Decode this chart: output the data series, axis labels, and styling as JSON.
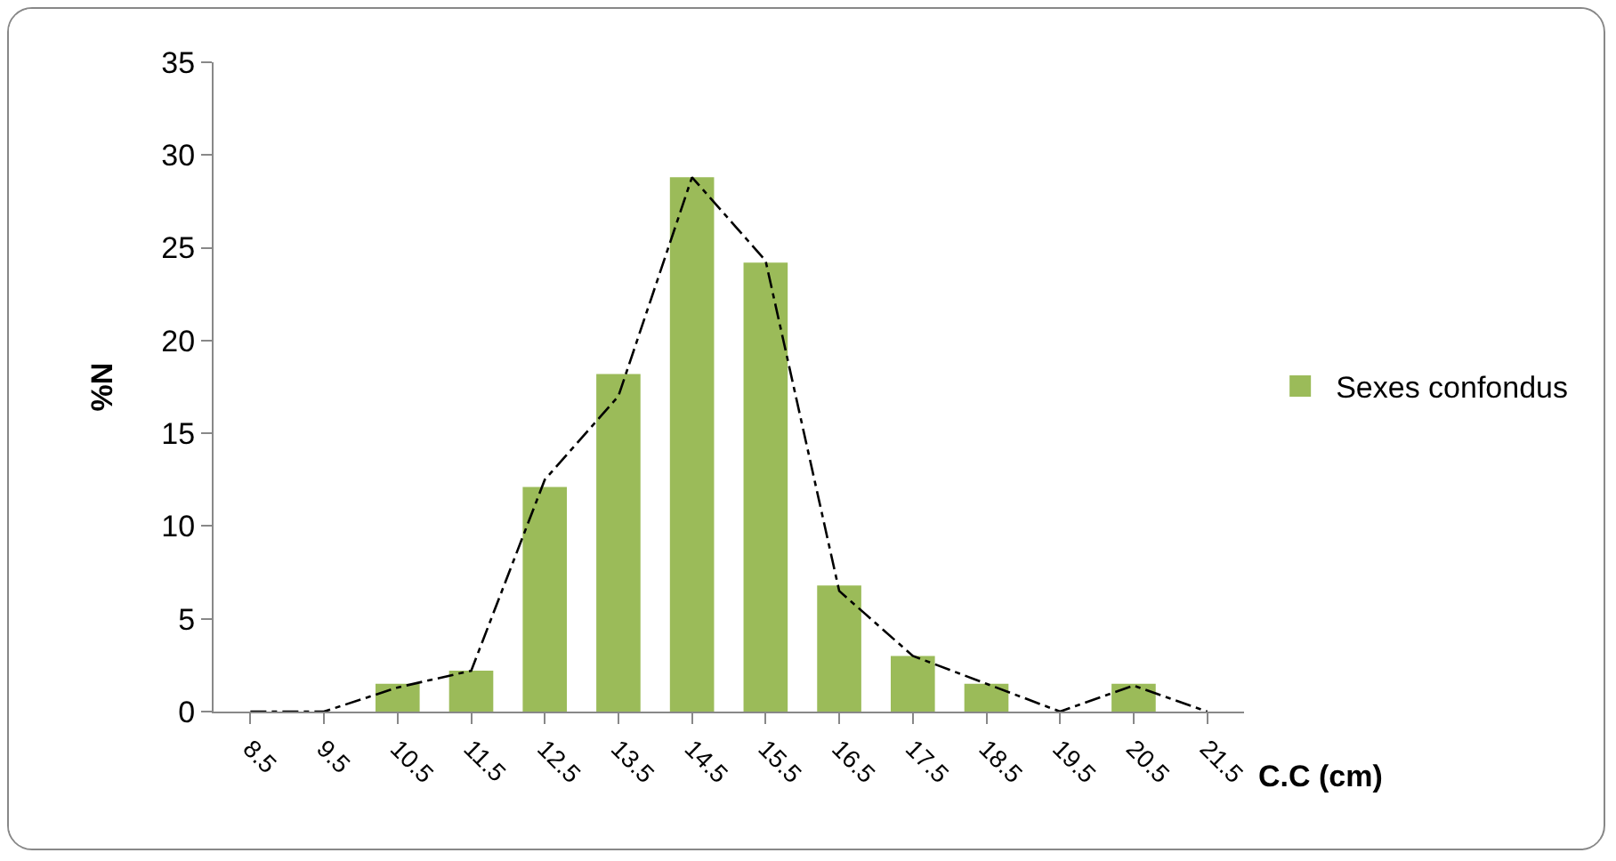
{
  "chart_data": {
    "type": "bar",
    "xlabel": "C.C (cm)",
    "ylabel": "%N",
    "categories": [
      "8.5",
      "9.5",
      "10.5",
      "11.5",
      "12.5",
      "13.5",
      "14.5",
      "15.5",
      "16.5",
      "17.5",
      "18.5",
      "19.5",
      "20.5",
      "21.5"
    ],
    "series": [
      {
        "name": "Sexes confondus",
        "color": "#9bbb59",
        "values": [
          0,
          0,
          1.5,
          2.2,
          12.1,
          18.2,
          28.8,
          24.2,
          6.8,
          3.0,
          1.5,
          0,
          1.5,
          0
        ]
      },
      {
        "type": "line",
        "color": "#000000",
        "line_style": "dashed",
        "values": [
          0,
          0,
          1.3,
          2.2,
          12.5,
          17,
          28.8,
          24.3,
          6.5,
          3,
          1.5,
          0,
          1.4,
          0
        ]
      }
    ],
    "ylim": [
      0,
      35
    ],
    "yticks": [
      0,
      5,
      10,
      15,
      20,
      25,
      30,
      35
    ],
    "grid": false,
    "legend": "right",
    "marker": "none"
  }
}
